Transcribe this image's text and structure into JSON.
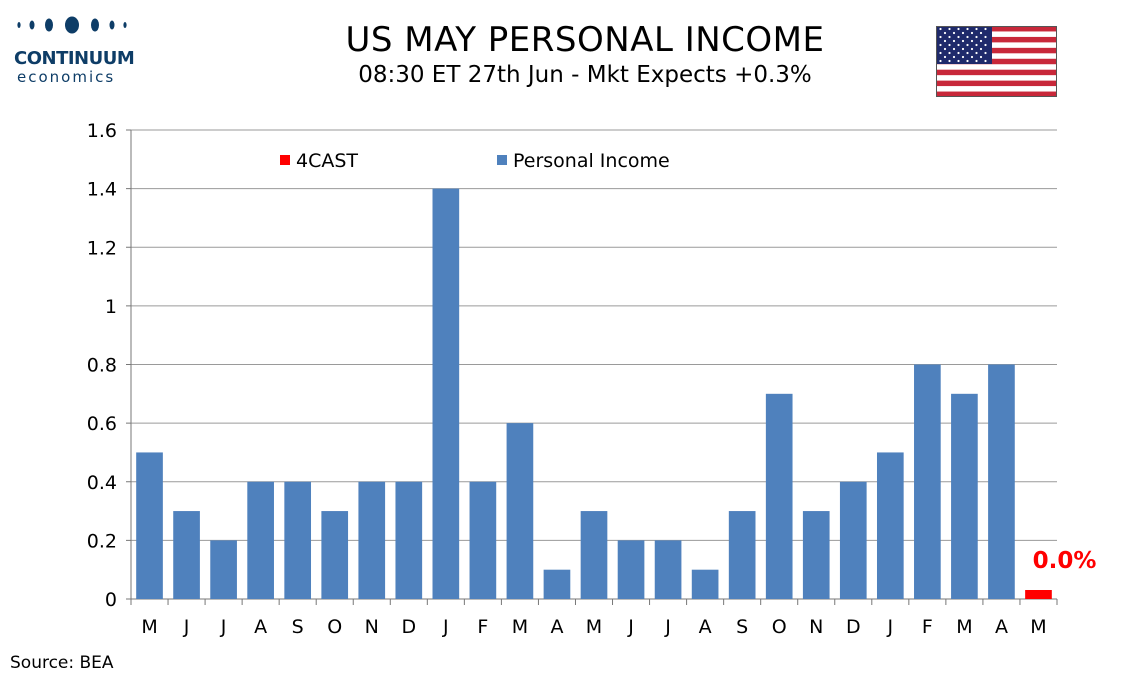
{
  "logo": {
    "word1": "CONTINUUM",
    "word2": "economics",
    "color": "#0e3d67"
  },
  "title": "US MAY PERSONAL INCOME",
  "subtitle": "08:30 ET 27th Jun - Mkt Expects +0.3%",
  "flag_icon": "us-flag-icon",
  "source": "Source: BEA",
  "chart_data": {
    "type": "bar",
    "categories": [
      "M",
      "J",
      "J",
      "A",
      "S",
      "O",
      "N",
      "D",
      "J",
      "F",
      "M",
      "A",
      "M",
      "J",
      "J",
      "A",
      "S",
      "O",
      "N",
      "D",
      "J",
      "F",
      "M",
      "A",
      "M"
    ],
    "series": [
      {
        "name": "Personal Income",
        "color": "#4f81bd",
        "values": [
          0.5,
          0.3,
          0.2,
          0.4,
          0.4,
          0.3,
          0.4,
          0.4,
          1.4,
          0.4,
          0.6,
          0.1,
          0.3,
          0.2,
          0.2,
          0.1,
          0.3,
          0.7,
          0.3,
          0.4,
          0.5,
          0.8,
          0.7,
          0.8,
          null
        ]
      },
      {
        "name": "4CAST",
        "color": "#ff0000",
        "values": [
          null,
          null,
          null,
          null,
          null,
          null,
          null,
          null,
          null,
          null,
          null,
          null,
          null,
          null,
          null,
          null,
          null,
          null,
          null,
          null,
          null,
          null,
          null,
          null,
          0.0
        ]
      }
    ],
    "yticks": [
      "0",
      "0.2",
      "0.4",
      "0.6",
      "0.8",
      "1",
      "1.2",
      "1.4",
      "1.6"
    ],
    "ylim": [
      0,
      1.6
    ],
    "grid": true,
    "legend_position": "top",
    "annotation": {
      "text": "0.0%",
      "color": "#ff0000"
    }
  }
}
